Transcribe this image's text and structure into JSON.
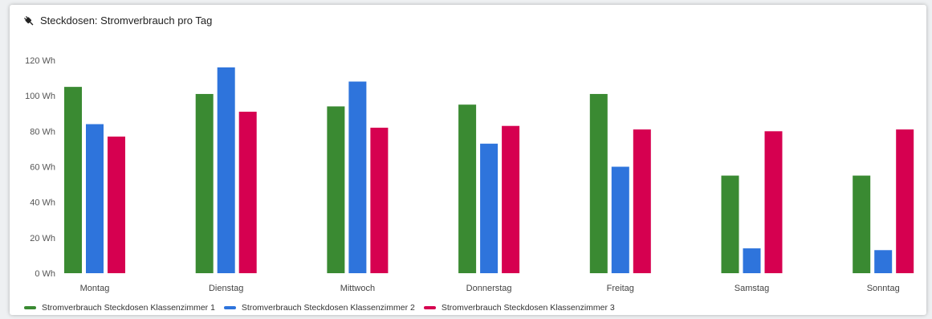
{
  "header": {
    "title": "Steckdosen: Stromverbrauch pro Tag",
    "icon": "power-plug-icon"
  },
  "chart_data": {
    "type": "bar",
    "title": "Steckdosen: Stromverbrauch pro Tag",
    "xlabel": "",
    "ylabel": "",
    "unit": "Wh",
    "ylim": [
      0,
      120
    ],
    "yticks": [
      "0 Wh",
      "20 Wh",
      "40 Wh",
      "60 Wh",
      "80 Wh",
      "100 Wh",
      "120 Wh"
    ],
    "ytick_values": [
      0,
      20,
      40,
      60,
      80,
      100,
      120
    ],
    "grid": false,
    "legend_position": "bottom-left",
    "categories": [
      "Montag",
      "Dienstag",
      "Mittwoch",
      "Donnerstag",
      "Freitag",
      "Samstag",
      "Sonntag"
    ],
    "series": [
      {
        "name": "Stromverbrauch Steckdosen Klassenzimmer 1",
        "color": "#3a8a32",
        "values": [
          105,
          101,
          94,
          95,
          101,
          55,
          55
        ]
      },
      {
        "name": "Stromverbrauch Steckdosen Klassenzimmer 2",
        "color": "#2e74dc",
        "values": [
          84,
          116,
          108,
          73,
          60,
          14,
          13
        ]
      },
      {
        "name": "Stromverbrauch Steckdosen Klassenzimmer 3",
        "color": "#d60050",
        "values": [
          77,
          91,
          82,
          83,
          81,
          80,
          81
        ]
      }
    ]
  }
}
